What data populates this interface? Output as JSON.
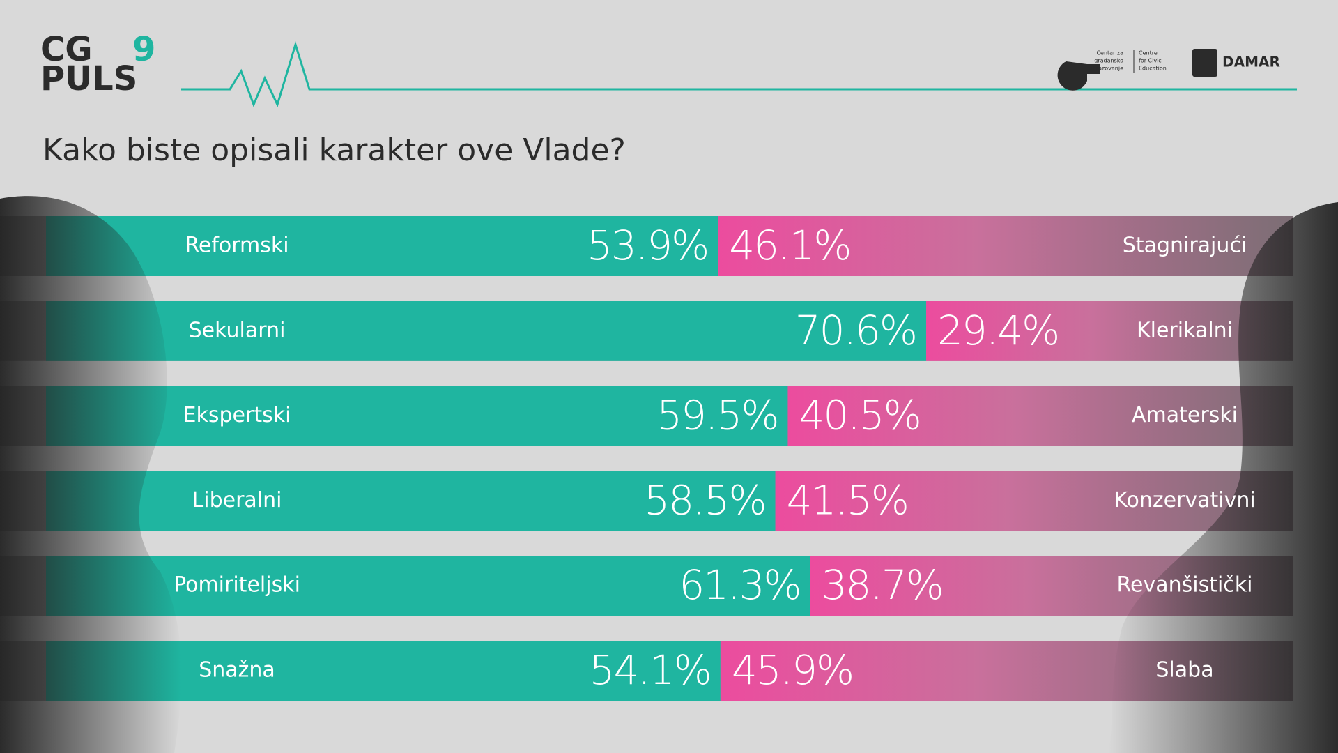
{
  "header": {
    "logo_top": "CG",
    "logo_number": "9",
    "logo_bottom": "PULS",
    "partner_1_line_1": "Centar za",
    "partner_1_line_2": "građansko",
    "partner_1_line_3": "obrazovanje",
    "partner_1_en_1": "Centre",
    "partner_1_en_2": "for Civic",
    "partner_1_en_3": "Education",
    "partner_2": "DAMAR"
  },
  "chart_data": {
    "type": "bar",
    "stacked": true,
    "orientation": "horizontal",
    "title": "Kako biste opisali karakter ove Vlade?",
    "xlim": [
      0,
      100
    ],
    "series": [
      {
        "color": "#1fb5a0",
        "labels": [
          "Reformski",
          "Sekularni",
          "Ekspertski",
          "Liberalni",
          "Pomiriteljski",
          "Snažna"
        ],
        "values": [
          53.9,
          70.6,
          59.5,
          58.5,
          61.3,
          54.1
        ],
        "value_labels": [
          "53.9%",
          "70.6%",
          "59.5%",
          "58.5%",
          "61.3%",
          "54.1%"
        ]
      },
      {
        "color": "#ec4c9e",
        "labels": [
          "Stagnirajući",
          "Klerikalni",
          "Amaterski",
          "Konzervativni",
          "Revanšistički",
          "Slaba"
        ],
        "values": [
          46.1,
          29.4,
          40.5,
          41.5,
          38.7,
          45.9
        ],
        "value_labels": [
          "46.1%",
          "29.4%",
          "40.5%",
          "41.5%",
          "38.7%",
          "45.9%"
        ]
      }
    ]
  }
}
